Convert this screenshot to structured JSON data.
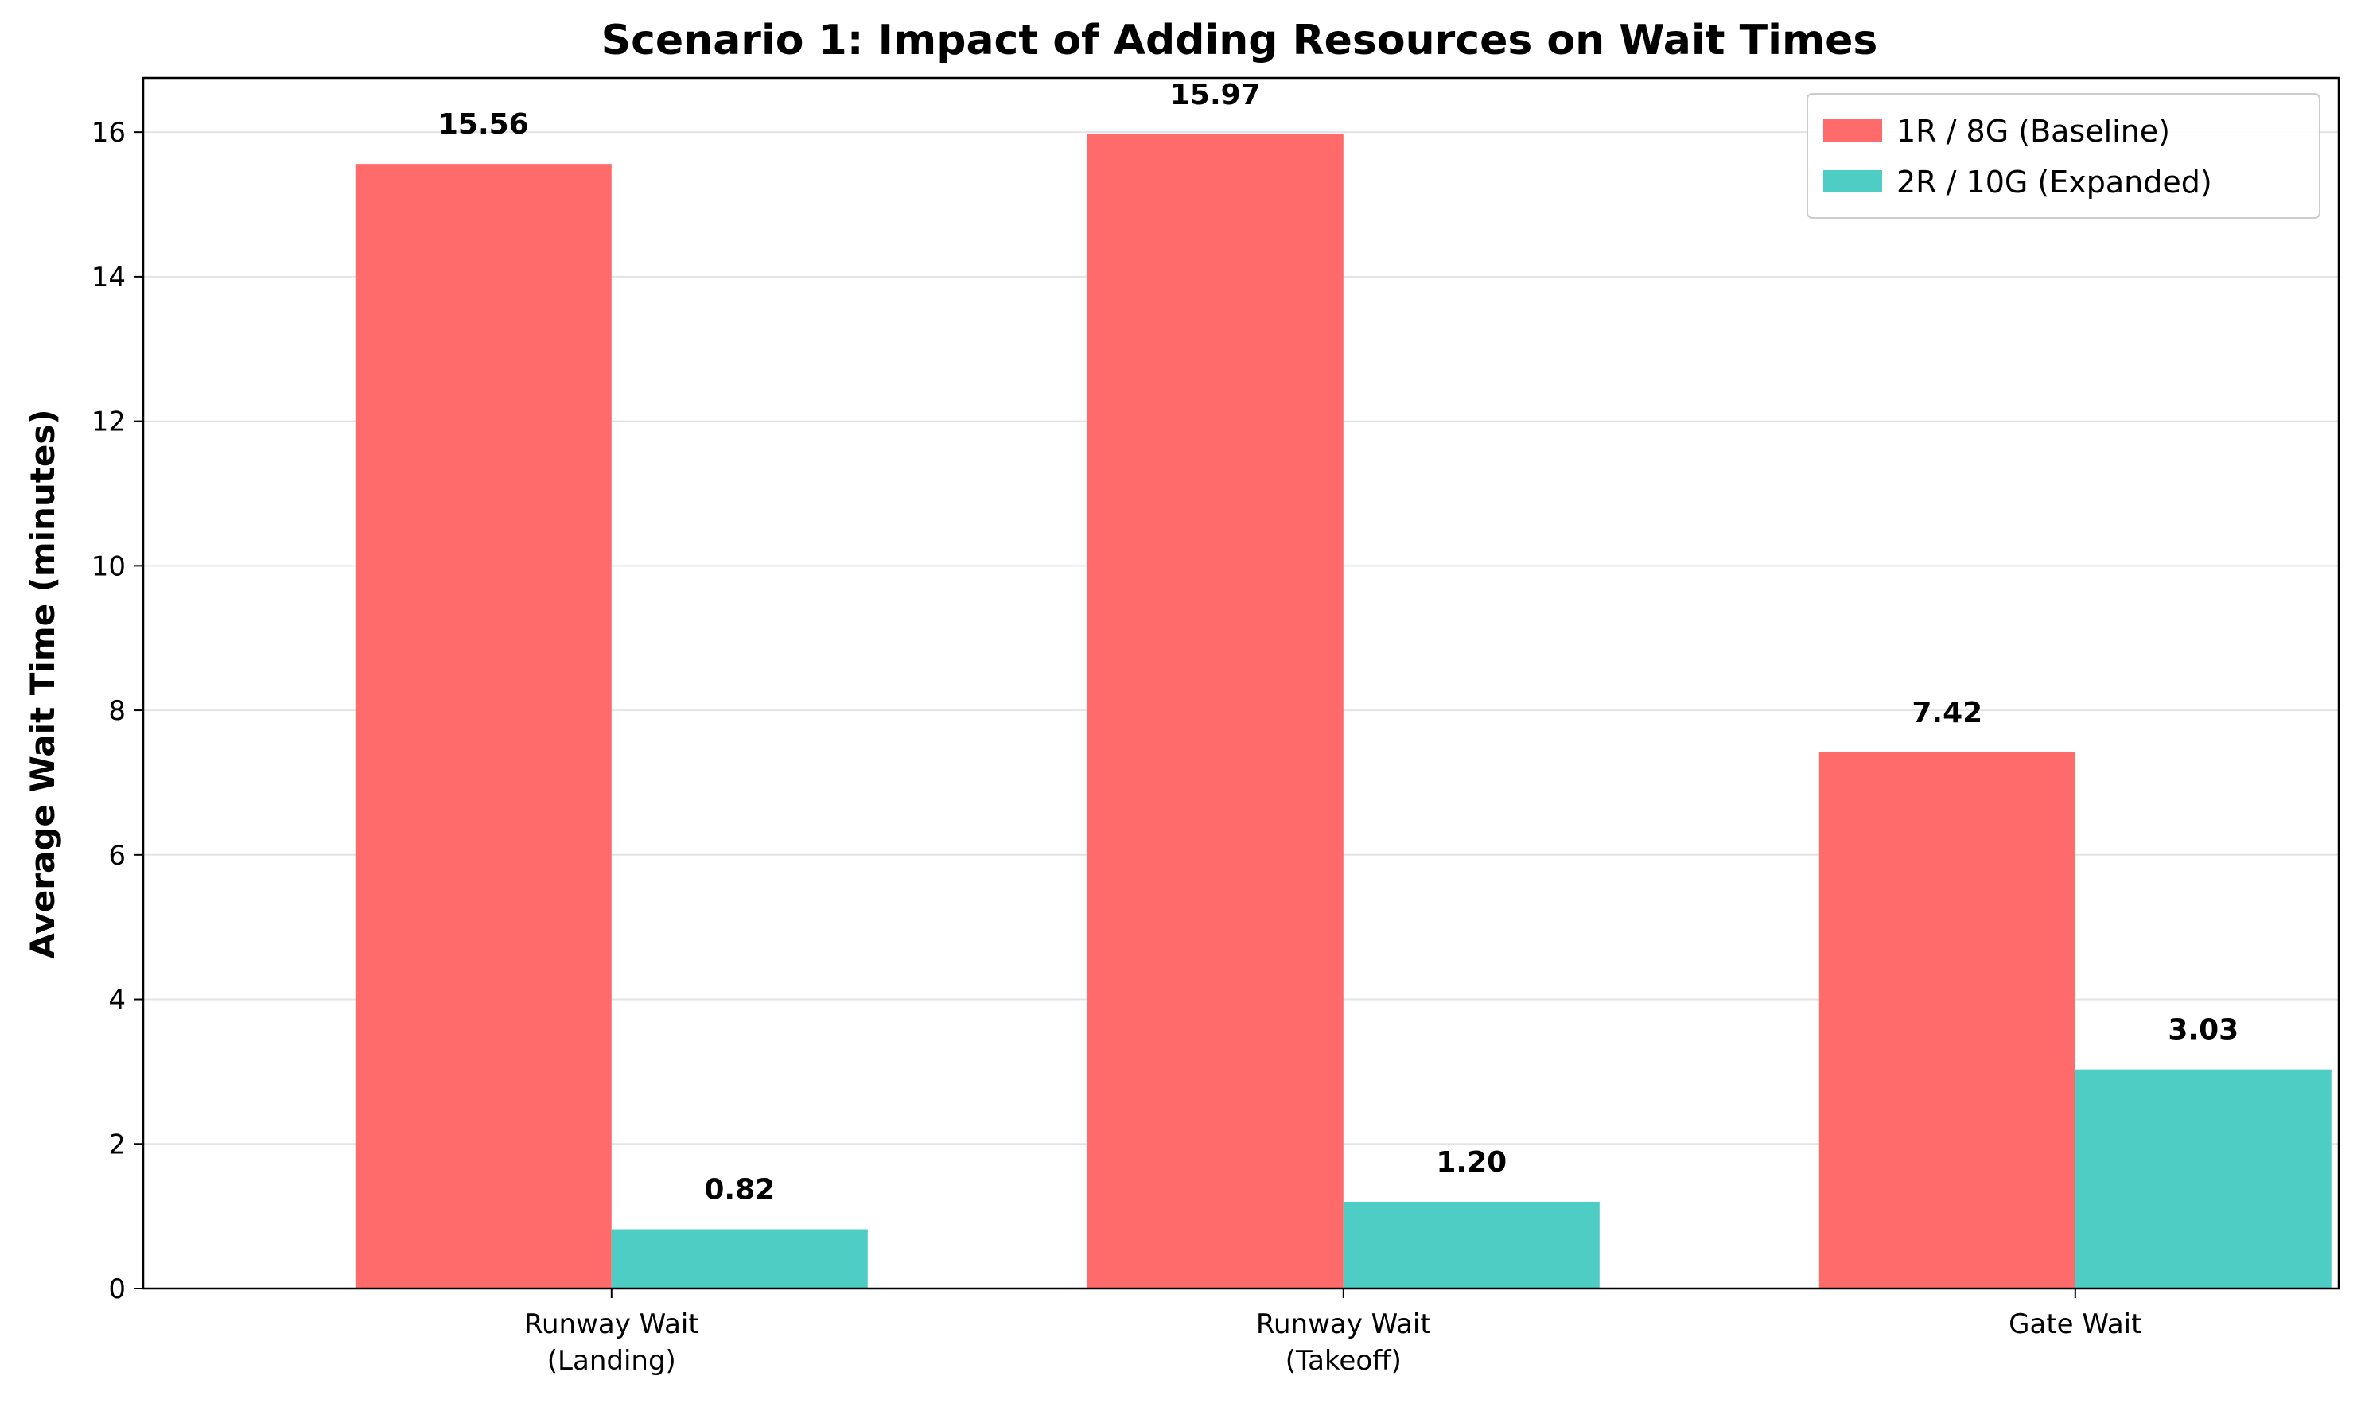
{
  "chart_data": {
    "type": "bar",
    "title": "Scenario 1: Impact of Adding Resources on Wait Times",
    "xlabel": "",
    "ylabel": "Average Wait Time (minutes)",
    "categories": [
      [
        "Runway Wait",
        "(Landing)"
      ],
      [
        "Runway Wait",
        "(Takeoff)"
      ],
      [
        "Gate Wait"
      ]
    ],
    "series": [
      {
        "name": "1R / 8G (Baseline)",
        "color": "#ff6b6b",
        "values": [
          15.56,
          15.97,
          7.42
        ],
        "labels": [
          "15.56",
          "15.97",
          "7.42"
        ]
      },
      {
        "name": "2R / 10G (Expanded)",
        "color": "#4ecdc4",
        "values": [
          0.82,
          1.2,
          3.03
        ],
        "labels": [
          "0.82",
          "1.20",
          "3.03"
        ]
      }
    ],
    "ylim": [
      0,
      16.75
    ],
    "yticks": [
      0,
      2,
      4,
      6,
      8,
      10,
      12,
      14,
      16
    ],
    "grid": "y",
    "legend": "upper right"
  }
}
